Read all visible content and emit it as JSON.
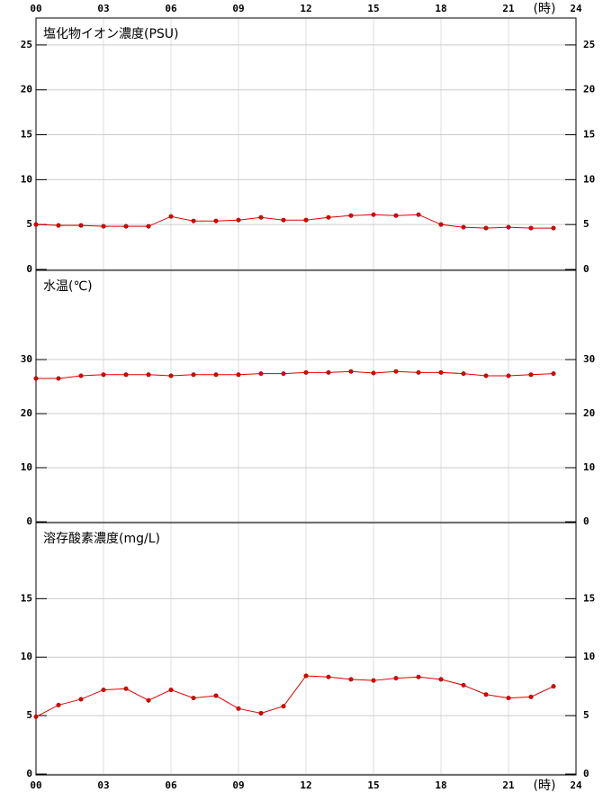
{
  "chart_data": [
    {
      "type": "line",
      "title": "塩化物イオン濃度(PSU)",
      "x_unit": "(時)",
      "xtick_labels": "top",
      "x": [
        0,
        1,
        2,
        3,
        4,
        5,
        6,
        7,
        8,
        9,
        10,
        11,
        12,
        13,
        14,
        15,
        16,
        17,
        18,
        19,
        20,
        21,
        22,
        23
      ],
      "values": [
        5.0,
        4.9,
        4.9,
        4.8,
        4.8,
        4.8,
        5.9,
        5.4,
        5.4,
        5.5,
        5.8,
        5.5,
        5.5,
        5.8,
        6.0,
        6.1,
        6.0,
        6.1,
        5.0,
        4.7,
        4.6,
        4.7,
        4.6,
        4.6
      ],
      "color": "#e00000",
      "xlim": [
        0,
        24
      ],
      "xticks": [
        {
          "value": 0,
          "label": "00"
        },
        {
          "value": 3,
          "label": "03"
        },
        {
          "value": 6,
          "label": "06"
        },
        {
          "value": 9,
          "label": "09"
        },
        12,
        15,
        18,
        21,
        24
      ],
      "ylim": [
        0,
        28
      ],
      "yticks": [
        0,
        5,
        10,
        15,
        20,
        25
      ],
      "grid": true
    },
    {
      "type": "line",
      "title": "水温(℃)",
      "x": [
        0,
        1,
        2,
        3,
        4,
        5,
        6,
        7,
        8,
        9,
        10,
        11,
        12,
        13,
        14,
        15,
        16,
        17,
        18,
        19,
        20,
        21,
        22,
        23
      ],
      "values": [
        26.5,
        26.5,
        27.0,
        27.2,
        27.2,
        27.2,
        27.0,
        27.2,
        27.2,
        27.2,
        27.4,
        27.4,
        27.6,
        27.6,
        27.8,
        27.5,
        27.8,
        27.6,
        27.6,
        27.4,
        27.0,
        27.0,
        27.2,
        27.4
      ],
      "color": "#e00000",
      "xlim": [
        0,
        24
      ],
      "xticks": [
        {
          "value": 0,
          "label": "00"
        },
        {
          "value": 3,
          "label": "03"
        },
        {
          "value": 6,
          "label": "06"
        },
        {
          "value": 9,
          "label": "09"
        },
        12,
        15,
        18,
        21,
        24
      ],
      "ylim": [
        0,
        46.5
      ],
      "yticks": [
        0,
        10,
        20,
        30
      ],
      "grid": true
    },
    {
      "type": "line",
      "title": "溶存酸素濃度(mg/L)",
      "x_unit": "(時)",
      "xtick_labels": "bottom",
      "x": [
        0,
        1,
        2,
        3,
        4,
        5,
        6,
        7,
        8,
        9,
        10,
        11,
        12,
        13,
        14,
        15,
        16,
        17,
        18,
        19,
        20,
        21,
        22,
        23
      ],
      "values": [
        4.9,
        5.9,
        6.4,
        7.2,
        7.3,
        6.3,
        7.2,
        6.5,
        6.7,
        5.6,
        5.2,
        5.8,
        8.4,
        8.3,
        8.1,
        8.0,
        8.2,
        8.3,
        8.1,
        7.6,
        6.8,
        6.5,
        6.6,
        7.5
      ],
      "color": "#e00000",
      "xlim": [
        0,
        24
      ],
      "xticks": [
        {
          "value": 0,
          "label": "00"
        },
        {
          "value": 3,
          "label": "03"
        },
        {
          "value": 6,
          "label": "06"
        },
        {
          "value": 9,
          "label": "09"
        },
        12,
        15,
        18,
        21,
        24
      ],
      "ylim": [
        0,
        21.5
      ],
      "yticks": [
        0,
        5,
        10,
        15
      ],
      "grid": true
    }
  ]
}
